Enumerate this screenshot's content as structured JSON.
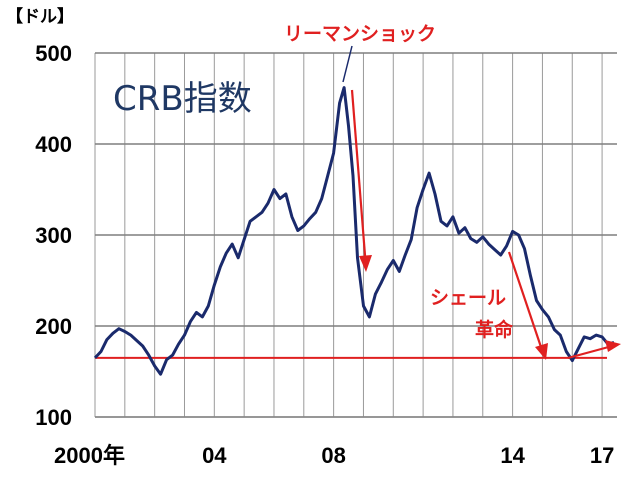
{
  "chart_data": {
    "type": "line",
    "title": "CRB指数",
    "unit_label": "【ドル】",
    "ylim": [
      100,
      500
    ],
    "y_ticks": [
      "100",
      "200",
      "300",
      "400",
      "500"
    ],
    "x_ticks": [
      {
        "x": 2000,
        "label": "2000年"
      },
      {
        "x": 2004,
        "label": "04"
      },
      {
        "x": 2008,
        "label": "08"
      },
      {
        "x": 2014,
        "label": "14"
      },
      {
        "x": 2017,
        "label": "17"
      }
    ],
    "xlim": [
      2000,
      2017.5
    ],
    "grid": "vertical-yearly",
    "reference_line": 165,
    "series": [
      {
        "color": "#1a2a6c",
        "points": [
          [
            2000.0,
            165
          ],
          [
            2000.2,
            172
          ],
          [
            2000.4,
            185
          ],
          [
            2000.6,
            192
          ],
          [
            2000.8,
            197
          ],
          [
            2001.0,
            194
          ],
          [
            2001.2,
            190
          ],
          [
            2001.4,
            184
          ],
          [
            2001.6,
            178
          ],
          [
            2001.8,
            168
          ],
          [
            2002.0,
            156
          ],
          [
            2002.2,
            147
          ],
          [
            2002.4,
            163
          ],
          [
            2002.6,
            168
          ],
          [
            2002.8,
            180
          ],
          [
            2003.0,
            190
          ],
          [
            2003.2,
            205
          ],
          [
            2003.4,
            215
          ],
          [
            2003.6,
            210
          ],
          [
            2003.8,
            222
          ],
          [
            2004.0,
            245
          ],
          [
            2004.2,
            265
          ],
          [
            2004.4,
            280
          ],
          [
            2004.6,
            290
          ],
          [
            2004.8,
            275
          ],
          [
            2005.0,
            295
          ],
          [
            2005.2,
            315
          ],
          [
            2005.4,
            320
          ],
          [
            2005.6,
            325
          ],
          [
            2005.8,
            335
          ],
          [
            2006.0,
            350
          ],
          [
            2006.2,
            340
          ],
          [
            2006.4,
            345
          ],
          [
            2006.6,
            320
          ],
          [
            2006.8,
            305
          ],
          [
            2007.0,
            310
          ],
          [
            2007.2,
            318
          ],
          [
            2007.4,
            325
          ],
          [
            2007.6,
            340
          ],
          [
            2007.8,
            365
          ],
          [
            2008.0,
            390
          ],
          [
            2008.2,
            445
          ],
          [
            2008.35,
            462
          ],
          [
            2008.5,
            420
          ],
          [
            2008.65,
            365
          ],
          [
            2008.8,
            275
          ],
          [
            2009.0,
            222
          ],
          [
            2009.2,
            210
          ],
          [
            2009.4,
            235
          ],
          [
            2009.6,
            248
          ],
          [
            2009.8,
            262
          ],
          [
            2010.0,
            272
          ],
          [
            2010.2,
            260
          ],
          [
            2010.4,
            278
          ],
          [
            2010.6,
            295
          ],
          [
            2010.8,
            330
          ],
          [
            2011.0,
            350
          ],
          [
            2011.2,
            368
          ],
          [
            2011.4,
            345
          ],
          [
            2011.6,
            315
          ],
          [
            2011.8,
            310
          ],
          [
            2012.0,
            320
          ],
          [
            2012.2,
            302
          ],
          [
            2012.4,
            308
          ],
          [
            2012.6,
            296
          ],
          [
            2012.8,
            292
          ],
          [
            2013.0,
            298
          ],
          [
            2013.2,
            290
          ],
          [
            2013.4,
            284
          ],
          [
            2013.6,
            278
          ],
          [
            2013.8,
            288
          ],
          [
            2014.0,
            304
          ],
          [
            2014.2,
            300
          ],
          [
            2014.4,
            285
          ],
          [
            2014.6,
            255
          ],
          [
            2014.8,
            228
          ],
          [
            2015.0,
            218
          ],
          [
            2015.2,
            210
          ],
          [
            2015.4,
            196
          ],
          [
            2015.6,
            190
          ],
          [
            2015.8,
            172
          ],
          [
            2016.0,
            162
          ],
          [
            2016.2,
            175
          ],
          [
            2016.4,
            188
          ],
          [
            2016.6,
            186
          ],
          [
            2016.8,
            190
          ],
          [
            2017.0,
            188
          ],
          [
            2017.2,
            180
          ],
          [
            2017.4,
            182
          ]
        ]
      }
    ],
    "annotations": [
      {
        "text": "リーマンショック"
      },
      {
        "text": "シェール"
      },
      {
        "text": "革命"
      }
    ]
  }
}
